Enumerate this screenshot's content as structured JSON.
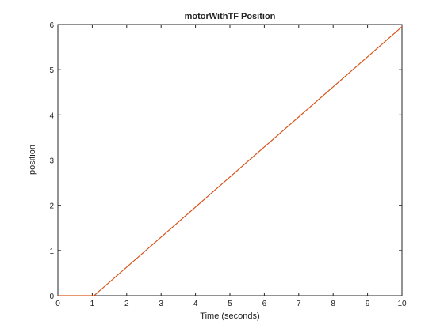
{
  "chart_data": {
    "type": "line",
    "title": "motorWithTF Position",
    "xlabel": "Time (seconds)",
    "ylabel": "position",
    "xlim": [
      0,
      10
    ],
    "ylim": [
      0,
      6
    ],
    "xticks": [
      "0",
      "1",
      "2",
      "3",
      "4",
      "5",
      "6",
      "7",
      "8",
      "9",
      "10"
    ],
    "yticks": [
      "0",
      "1",
      "2",
      "3",
      "4",
      "5",
      "6"
    ],
    "grid": false,
    "legend": "none",
    "series": [
      {
        "color": "#d95319",
        "x": [
          0,
          1.05,
          10
        ],
        "y": [
          0,
          0,
          5.95
        ]
      }
    ]
  }
}
